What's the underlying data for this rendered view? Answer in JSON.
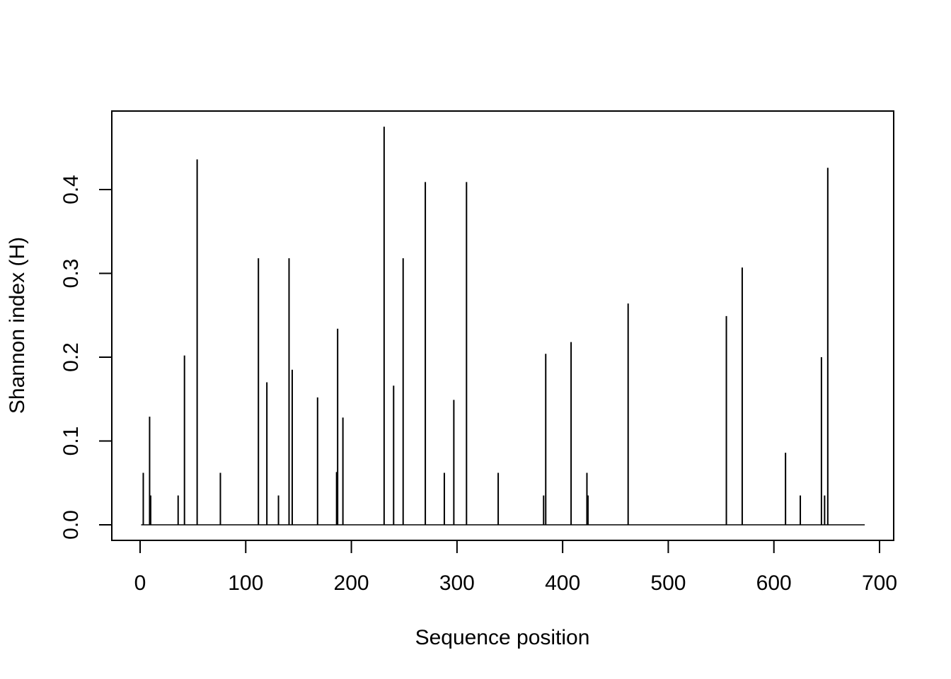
{
  "chart_data": {
    "type": "bar",
    "title": "",
    "xlabel": "Sequence position",
    "ylabel": "Shannon index (H)",
    "xlim": [
      0,
      700
    ],
    "ylim": [
      0.0,
      0.45
    ],
    "xticks": [
      0,
      100,
      200,
      300,
      400,
      500,
      600,
      700
    ],
    "xtick_labels": [
      "0",
      "100",
      "200",
      "300",
      "400",
      "500",
      "600",
      "700"
    ],
    "yticks": [
      0.0,
      0.1,
      0.2,
      0.3,
      0.4
    ],
    "ytick_labels": [
      "0.0",
      "0.1",
      "0.2",
      "0.3",
      "0.4"
    ],
    "sequence_length": 686,
    "grid": false,
    "color": "#000000",
    "points": [
      {
        "x": 3,
        "y": 0.062
      },
      {
        "x": 9,
        "y": 0.129
      },
      {
        "x": 10,
        "y": 0.035
      },
      {
        "x": 36,
        "y": 0.035
      },
      {
        "x": 42,
        "y": 0.202
      },
      {
        "x": 54,
        "y": 0.436
      },
      {
        "x": 76,
        "y": 0.062
      },
      {
        "x": 112,
        "y": 0.318
      },
      {
        "x": 120,
        "y": 0.17
      },
      {
        "x": 131,
        "y": 0.035
      },
      {
        "x": 141,
        "y": 0.318
      },
      {
        "x": 144,
        "y": 0.185
      },
      {
        "x": 168,
        "y": 0.152
      },
      {
        "x": 186,
        "y": 0.063
      },
      {
        "x": 187,
        "y": 0.234
      },
      {
        "x": 192,
        "y": 0.128
      },
      {
        "x": 231,
        "y": 0.475
      },
      {
        "x": 240,
        "y": 0.166
      },
      {
        "x": 249,
        "y": 0.318
      },
      {
        "x": 270,
        "y": 0.409
      },
      {
        "x": 288,
        "y": 0.062
      },
      {
        "x": 297,
        "y": 0.149
      },
      {
        "x": 309,
        "y": 0.409
      },
      {
        "x": 339,
        "y": 0.062
      },
      {
        "x": 382,
        "y": 0.035
      },
      {
        "x": 384,
        "y": 0.204
      },
      {
        "x": 408,
        "y": 0.218
      },
      {
        "x": 423,
        "y": 0.062
      },
      {
        "x": 424,
        "y": 0.035
      },
      {
        "x": 462,
        "y": 0.264
      },
      {
        "x": 555,
        "y": 0.249
      },
      {
        "x": 570,
        "y": 0.307
      },
      {
        "x": 611,
        "y": 0.086
      },
      {
        "x": 625,
        "y": 0.035
      },
      {
        "x": 645,
        "y": 0.2
      },
      {
        "x": 648,
        "y": 0.035
      },
      {
        "x": 651,
        "y": 0.426
      }
    ]
  }
}
